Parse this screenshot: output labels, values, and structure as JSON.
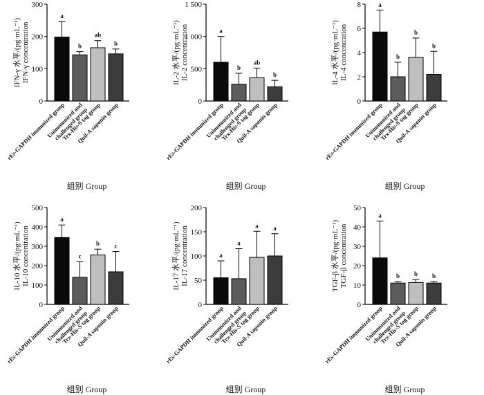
{
  "figure": {
    "categories": [
      "rEs-GAPDH immunized group",
      "Unimmunized and challenged group",
      "Trx-His-S tag group",
      "Quil-A saponin group"
    ],
    "category_lines": [
      [
        "rEs-GAPDH immunized group"
      ],
      [
        "Unimmunized and",
        "challenged group"
      ],
      [
        "Trx-His-S tag group"
      ],
      [
        "Quil-A saponin group"
      ]
    ],
    "xlabel": "组别 Group",
    "bar_colors": [
      "#0a0a0a",
      "#5c5c5c",
      "#bfbfbf",
      "#3c3c3c"
    ]
  },
  "chart_data": [
    {
      "type": "bar",
      "title": "IFN-γ",
      "ylabel_cn": "IFN-γ 水平/(pg·mL⁻¹)",
      "ylabel_en": "IFN-γ concentration",
      "xlabel": "组别 Group",
      "ylim": [
        0,
        300
      ],
      "ticks": [
        0,
        100,
        200,
        300
      ],
      "tick_labels": [
        "0",
        "100",
        "200",
        "300"
      ],
      "values": [
        198,
        143,
        165,
        146
      ],
      "errors": [
        48,
        10,
        22,
        15
      ],
      "letters": [
        "a",
        "b",
        "ab",
        "b"
      ]
    },
    {
      "type": "bar",
      "title": "IL-2",
      "ylabel_cn": "IL-2 水平/(pg·mL⁻¹)",
      "ylabel_en": "IL-2 concentration",
      "xlabel": "组别 Group",
      "ylim": [
        0,
        1500
      ],
      "ticks": [
        0,
        500,
        1000,
        1500
      ],
      "tick_labels": [
        "0",
        "500",
        "1 000",
        "1 500"
      ],
      "values": [
        600,
        260,
        360,
        220
      ],
      "errors": [
        400,
        170,
        150,
        100
      ],
      "letters": [
        "a",
        "b",
        "ab",
        "b"
      ]
    },
    {
      "type": "bar",
      "title": "IL-4",
      "ylabel_cn": "IL-4 水平/(pg·mL⁻¹)",
      "ylabel_en": "IL-4 concentration",
      "xlabel": "组别 Group",
      "ylim": [
        0,
        8
      ],
      "ticks": [
        0,
        2,
        4,
        6,
        8
      ],
      "tick_labels": [
        "0",
        "2",
        "4",
        "6",
        "8"
      ],
      "values": [
        5.7,
        2.0,
        3.6,
        2.2
      ],
      "errors": [
        1.8,
        1.2,
        1.6,
        1.9
      ],
      "letters": [
        "a",
        "b",
        "b",
        "b"
      ]
    },
    {
      "type": "bar",
      "title": "IL-10",
      "ylabel_cn": "IL-10 水平/(pg·mL⁻¹)",
      "ylabel_en": "IL-10 concentration",
      "xlabel": "组别 Group",
      "ylim": [
        0,
        500
      ],
      "ticks": [
        0,
        100,
        200,
        300,
        400,
        500
      ],
      "tick_labels": [
        "0",
        "100",
        "200",
        "300",
        "400",
        "500"
      ],
      "values": [
        345,
        140,
        255,
        168
      ],
      "errors": [
        65,
        80,
        30,
        105
      ],
      "letters": [
        "a",
        "c",
        "b",
        "c"
      ]
    },
    {
      "type": "bar",
      "title": "IL-17",
      "ylabel_cn": "IL-17 水平/(pg·mL⁻¹)",
      "ylabel_en": "IL-17 concentration",
      "xlabel": "组别 Group",
      "ylim": [
        0,
        200
      ],
      "ticks": [
        0,
        50,
        100,
        150,
        200
      ],
      "tick_labels": [
        "0",
        "50",
        "100",
        "150",
        "200"
      ],
      "values": [
        55,
        53,
        97,
        100
      ],
      "errors": [
        35,
        62,
        54,
        46
      ],
      "letters": [
        "a",
        "a",
        "a",
        "a"
      ]
    },
    {
      "type": "bar",
      "title": "TGF-β",
      "ylabel_cn": "TGF-β 水平/(pg·mL⁻¹)",
      "ylabel_en": "TGF-β concentration",
      "xlabel": "组别 Group",
      "ylim": [
        0,
        50
      ],
      "ticks": [
        0,
        10,
        20,
        30,
        40,
        50
      ],
      "tick_labels": [
        "0",
        "10",
        "20",
        "30",
        "40",
        "50"
      ],
      "values": [
        24,
        11,
        11.3,
        11
      ],
      "errors": [
        19,
        0.8,
        1.5,
        0.8
      ],
      "letters": [
        "a",
        "b",
        "b",
        "b"
      ]
    }
  ]
}
